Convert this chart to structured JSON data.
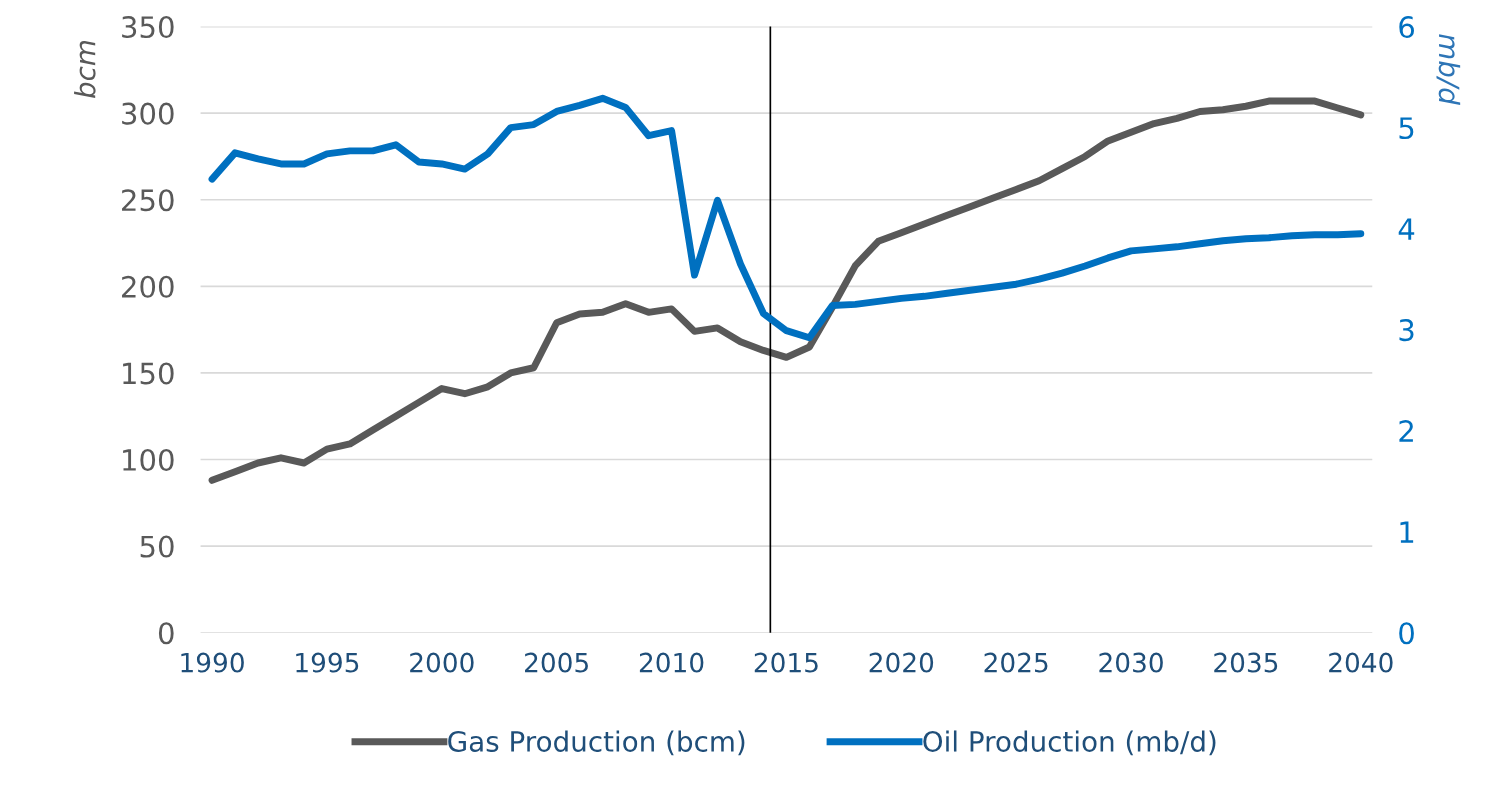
{
  "chart_data": {
    "type": "line",
    "x": [
      1990,
      1991,
      1992,
      1993,
      1994,
      1995,
      1996,
      1997,
      1998,
      1999,
      2000,
      2001,
      2002,
      2003,
      2004,
      2005,
      2006,
      2007,
      2008,
      2009,
      2010,
      2011,
      2012,
      2013,
      2014,
      2015,
      2016,
      2017,
      2018,
      2019,
      2020,
      2021,
      2022,
      2023,
      2024,
      2025,
      2026,
      2027,
      2028,
      2029,
      2030,
      2031,
      2032,
      2033,
      2034,
      2035,
      2036,
      2037,
      2038,
      2039,
      2040
    ],
    "series": [
      {
        "name": "Gas Production (bcm)",
        "color": "#595959",
        "values": [
          88,
          93,
          98,
          101,
          98,
          106,
          109,
          117,
          125,
          133,
          141,
          138,
          142,
          150,
          153,
          179,
          184,
          185,
          190,
          185,
          187,
          174,
          176,
          168,
          163,
          159,
          165,
          188,
          212,
          226,
          231,
          236,
          241,
          246,
          251,
          256,
          261,
          268,
          275,
          284,
          289,
          294,
          297,
          301,
          302,
          304,
          307,
          307,
          307,
          303,
          299
        ]
      },
      {
        "name": "Oil Production (mb/d)",
        "color": "#0070c0",
        "axis": "y2",
        "values": [
          4.49,
          4.75,
          4.69,
          4.64,
          4.64,
          4.74,
          4.77,
          4.77,
          4.83,
          4.66,
          4.64,
          4.59,
          4.74,
          5.0,
          5.03,
          5.16,
          5.22,
          5.29,
          5.2,
          4.92,
          4.97,
          3.54,
          4.28,
          3.65,
          3.16,
          2.99,
          2.92,
          3.24,
          3.25,
          3.28,
          3.31,
          3.33,
          3.36,
          3.39,
          3.42,
          3.45,
          3.5,
          3.56,
          3.63,
          3.71,
          3.78,
          3.8,
          3.82,
          3.85,
          3.88,
          3.9,
          3.91,
          3.93,
          3.94,
          3.94,
          3.95
        ]
      }
    ],
    "xlim": [
      1989.5,
      2040.5
    ],
    "xticks": [
      1990,
      1995,
      2000,
      2005,
      2010,
      2015,
      2020,
      2025,
      2030,
      2035,
      2040
    ],
    "ylim": [
      0,
      350
    ],
    "yticks": [
      0,
      50,
      100,
      150,
      200,
      250,
      300,
      350
    ],
    "y2lim": [
      0,
      6
    ],
    "y2ticks": [
      0,
      1,
      2,
      3,
      4,
      5,
      6
    ],
    "ylabel": "bcm",
    "y2label": "mb/d",
    "ref_lines": [
      {
        "axis": "x",
        "value": 2014.3,
        "color": "#000000"
      }
    ],
    "grid": "y",
    "legend": "bottom",
    "line_style": "solid",
    "marker": "none"
  }
}
